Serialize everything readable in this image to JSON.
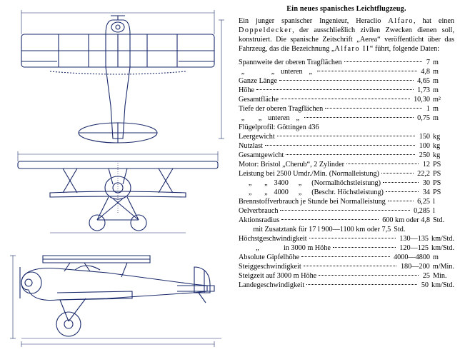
{
  "title": "Ein neues spanisches Leichtflugzeug.",
  "intro_html": "Ein junger spanischer Ingenieur, Heraclio <span class='spaced'>Alfaro</span>, hat einen <span class='spaced'>Doppeldecker</span>, der ausschließlich zivilen Zwecken dienen soll, konstruiert. Die spanische Zeitschrift „Aerea“ veröffentlicht über das Fahrzeug, das die Bezeichnung „<span class='spaced'>Alfaro II</span>“ führt, folgende Daten:",
  "specs": [
    {
      "lbl": "Spannweite der oberen Tragflächen",
      "val": "7",
      "unit": "m",
      "dots": true
    },
    {
      "lbl": "<span class='quote'>„</span><span class='indent2'></span><span class='quote'>„</span>&nbsp;&nbsp;unteren&nbsp;&nbsp;<span class='quote'>„</span>",
      "val": "4,8",
      "unit": "m",
      "dots": true
    },
    {
      "lbl": "Ganze Länge",
      "val": "4,65",
      "unit": "m",
      "dots": true
    },
    {
      "lbl": "Höhe",
      "val": "1,73",
      "unit": "m",
      "dots": true
    },
    {
      "lbl": "Gesamtfläche",
      "val": "10,30",
      "unit": "m²",
      "dots": true
    },
    {
      "lbl": "Tiefe der oberen Tragflächen",
      "val": "1",
      "unit": "m",
      "dots": true
    },
    {
      "lbl": "<span class='quote'>„</span><span class='indent1'></span><span class='quote'>„</span>&nbsp;&nbsp;unteren&nbsp;&nbsp;<span class='quote'>„</span>",
      "val": "0,75",
      "unit": "m",
      "dots": true
    },
    {
      "lbl": "Flügelprofil: Göttingen 436",
      "val": "",
      "unit": "",
      "dots": false
    },
    {
      "lbl": "Leergewicht",
      "val": "150",
      "unit": "kg",
      "dots": true
    },
    {
      "lbl": "Nutzlast",
      "val": "100",
      "unit": "kg",
      "dots": true
    },
    {
      "lbl": "Gesamtgewicht",
      "val": "250",
      "unit": "kg",
      "dots": true
    },
    {
      "lbl": "Motor: Bristol „Cherub“, 2 Zylinder",
      "val": "12",
      "unit": "PS",
      "dots": true
    },
    {
      "lbl": "Leistung bei 2500 Umdr./Min. (Normalleistung)",
      "val": "22,2",
      "unit": "PS",
      "dots": true
    },
    {
      "lbl": "&nbsp;&nbsp;&nbsp;&nbsp;<span class='quote'>„</span>&nbsp;&nbsp;&nbsp;&nbsp;<span class='quote'>„</span>&nbsp;&nbsp;3400&nbsp;&nbsp;&nbsp;&nbsp;<span class='quote'>„</span>&nbsp;&nbsp;&nbsp;&nbsp;(Normalhöchstleistung)",
      "val": "30",
      "unit": "PS",
      "dots": true
    },
    {
      "lbl": "&nbsp;&nbsp;&nbsp;&nbsp;<span class='quote'>„</span>&nbsp;&nbsp;&nbsp;&nbsp;<span class='quote'>„</span>&nbsp;&nbsp;4000&nbsp;&nbsp;&nbsp;&nbsp;<span class='quote'>„</span>&nbsp;&nbsp;&nbsp;&nbsp;(Beschr. Höchstleistung)",
      "val": "34",
      "unit": "PS",
      "dots": true
    },
    {
      "lbl": "Brennstoffverbrauch je Stunde bei Normalleistung",
      "val": "6,25",
      "unit": "l",
      "dots": true
    },
    {
      "lbl": "Oelverbrauch",
      "val": "0,285",
      "unit": "l",
      "dots": true
    },
    {
      "lbl": "Aktionsradius",
      "val": "600 km oder 4,8",
      "unit": "Std.",
      "dots": true
    },
    {
      "lbl": "&nbsp;&nbsp;&nbsp;&nbsp;&nbsp;&nbsp;&nbsp;&nbsp;mit Zusatztank für 17 l 900—1100 km oder 7,5",
      "val": "",
      "unit": "Std.",
      "dots": false,
      "tail": true
    },
    {
      "lbl": "Höchstgeschwindigkeit",
      "val": "130—135",
      "unit": "km/Std.",
      "dots": true
    },
    {
      "lbl": "&nbsp;&nbsp;&nbsp;&nbsp;&nbsp;&nbsp;&nbsp;&nbsp;<span class='quote'>„</span>&nbsp;&nbsp;&nbsp;&nbsp;&nbsp;&nbsp;&nbsp;&nbsp;&nbsp;&nbsp;&nbsp;&nbsp;in 3000 m Höhe",
      "val": "120—125",
      "unit": "km/Std.",
      "dots": true
    },
    {
      "lbl": "Absolute Gipfelhöhe",
      "val": "4000—4800",
      "unit": "m",
      "dots": true
    },
    {
      "lbl": "Steiggeschwindigkeit",
      "val": "180—200",
      "unit": "m/Min.",
      "dots": true
    },
    {
      "lbl": "Steigzeit auf 3000 m Höhe",
      "val": "25",
      "unit": "Min.",
      "dots": true
    },
    {
      "lbl": "Landegeschwindigkeit",
      "val": "50",
      "unit": "km/Std.",
      "dots": true
    }
  ],
  "drawing": {
    "stroke": "#1a2a6b",
    "stroke_width": 1.1,
    "bg": "#ffffff"
  }
}
